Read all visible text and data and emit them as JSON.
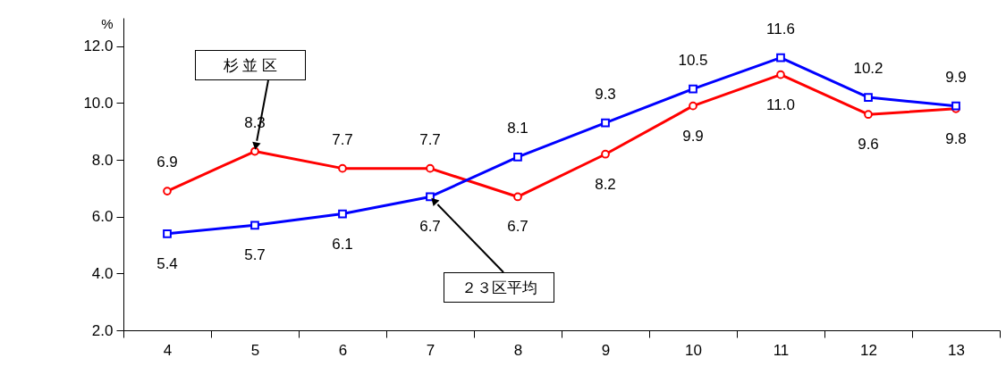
{
  "chart_data": {
    "type": "line",
    "ylabel": "%",
    "categories": [
      "4",
      "5",
      "6",
      "7",
      "8",
      "9",
      "10",
      "11",
      "12",
      "13"
    ],
    "series": [
      {
        "name": "杉 並 区",
        "color": "#ff0000",
        "marker": "circle",
        "values": [
          6.9,
          8.3,
          7.7,
          7.7,
          6.7,
          8.2,
          9.9,
          11.0,
          9.6,
          9.8
        ],
        "value_labels": [
          "6.9",
          "8.3",
          "7.7",
          "7.7",
          "6.7",
          "8.2",
          "9.9",
          "11.0",
          "9.6",
          "9.8"
        ]
      },
      {
        "name": "２３区平均",
        "color": "#0000ff",
        "marker": "square",
        "values": [
          5.4,
          5.7,
          6.1,
          6.7,
          8.1,
          9.3,
          10.5,
          11.6,
          10.2,
          9.9
        ],
        "value_labels": [
          "5.4",
          "5.7",
          "6.1",
          "6.7",
          "8.1",
          "9.3",
          "10.5",
          "11.6",
          "10.2",
          "9.9"
        ]
      }
    ],
    "ylim": [
      2,
      13
    ],
    "yticks": [
      {
        "value": 2,
        "label": "2.0"
      },
      {
        "value": 4,
        "label": "4.0"
      },
      {
        "value": 6,
        "label": "6.0"
      },
      {
        "value": 8,
        "label": "8.0"
      },
      {
        "value": 10,
        "label": "10.0"
      },
      {
        "value": 12,
        "label": "12.0"
      }
    ],
    "grid": false,
    "line_style": "solid"
  }
}
